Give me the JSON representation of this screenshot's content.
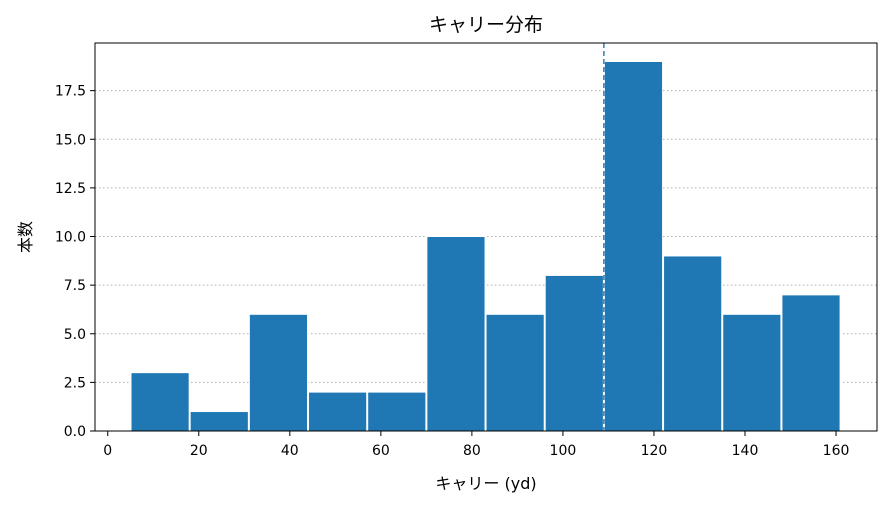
{
  "chart_data": {
    "type": "bar",
    "title": "キャリー分布",
    "xlabel": "キャリー (yd)",
    "ylabel": "本数",
    "xlim": [
      -2.8,
      169
    ],
    "ylim": [
      0,
      19.95
    ],
    "xticks": [
      0,
      20,
      40,
      60,
      80,
      100,
      120,
      140,
      160
    ],
    "yticks": [
      0.0,
      2.5,
      5.0,
      7.5,
      10.0,
      12.5,
      15.0,
      17.5
    ],
    "ytick_labels": [
      "0.0",
      "2.5",
      "5.0",
      "7.5",
      "10.0",
      "12.5",
      "15.0",
      "17.5"
    ],
    "grid": "y-dotted",
    "bins": [
      {
        "x0": 5.0,
        "x1": 18.0,
        "count": 3
      },
      {
        "x0": 18.0,
        "x1": 31.0,
        "count": 1
      },
      {
        "x0": 31.0,
        "x1": 44.0,
        "count": 6
      },
      {
        "x0": 44.0,
        "x1": 57.0,
        "count": 2
      },
      {
        "x0": 57.0,
        "x1": 70.0,
        "count": 2
      },
      {
        "x0": 70.0,
        "x1": 83.0,
        "count": 10
      },
      {
        "x0": 83.0,
        "x1": 96.0,
        "count": 6
      },
      {
        "x0": 96.0,
        "x1": 109.0,
        "count": 8
      },
      {
        "x0": 109.0,
        "x1": 122.0,
        "count": 19
      },
      {
        "x0": 122.0,
        "x1": 135.0,
        "count": 9
      },
      {
        "x0": 135.0,
        "x1": 148.0,
        "count": 6
      },
      {
        "x0": 148.0,
        "x1": 161.0,
        "count": 7
      }
    ],
    "vline": {
      "x": 109,
      "style": "dashed"
    },
    "colors": {
      "bar": "#1f77b4",
      "vline": "#1f77b4",
      "grid": "#b0b0b0"
    }
  }
}
